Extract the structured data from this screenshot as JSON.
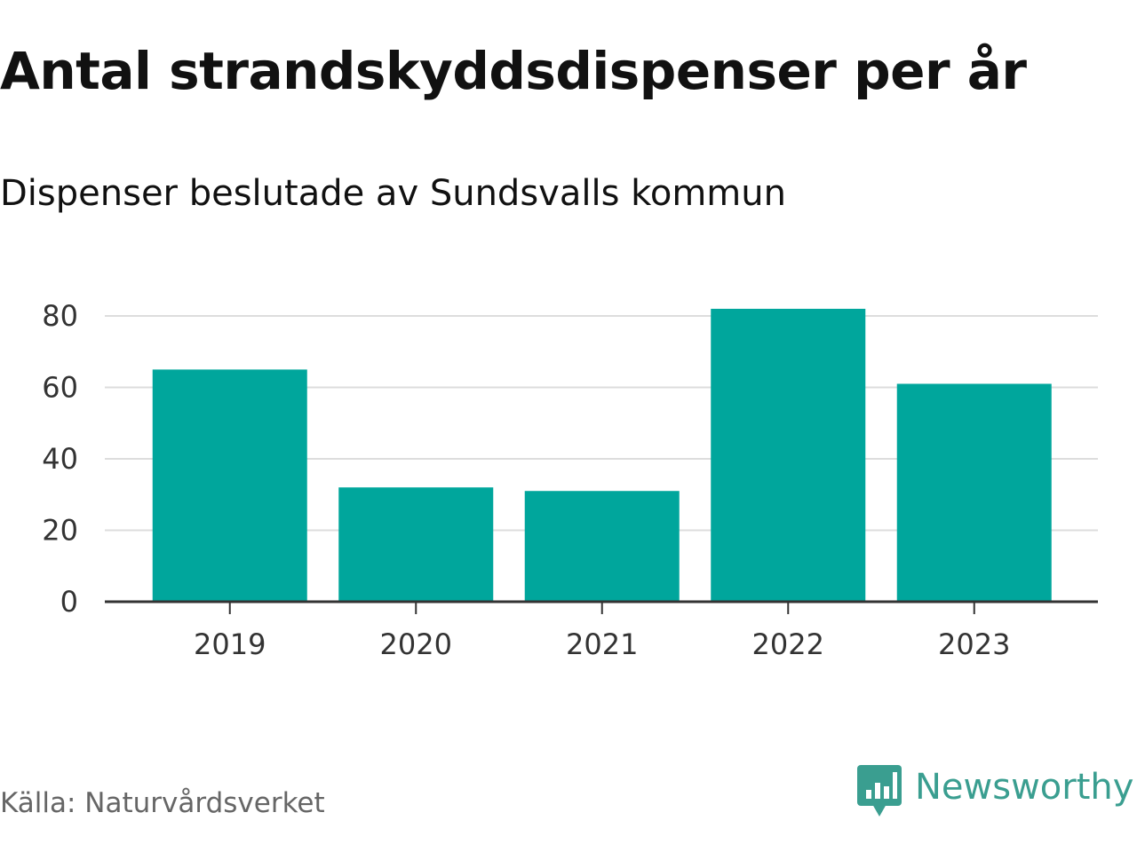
{
  "header": {
    "title": "Antal strandskyddsdispenser per år",
    "subtitle": "Dispenser beslutade av Sundsvalls kommun"
  },
  "footer": {
    "source": "Källa: Naturvårdsverket",
    "brand": "Newsworthy",
    "brand_icon": "newsworthy-logo-icon"
  },
  "colors": {
    "bar": "#00a69c",
    "grid": "#dddddd",
    "axis": "#333333",
    "brand": "#3a9e90"
  },
  "chart_data": {
    "type": "bar",
    "title": "Antal strandskyddsdispenser per år",
    "subtitle": "Dispenser beslutade av Sundsvalls kommun",
    "categories": [
      "2019",
      "2020",
      "2021",
      "2022",
      "2023"
    ],
    "values": [
      65,
      32,
      31,
      82,
      61
    ],
    "series": [
      {
        "name": "Dispenser",
        "values": [
          65,
          32,
          31,
          82,
          61
        ]
      }
    ],
    "xlabel": "",
    "ylabel": "",
    "ylim": [
      0,
      80
    ],
    "yticks": [
      0,
      20,
      40,
      60,
      80
    ],
    "grid": true,
    "legend": "none"
  }
}
